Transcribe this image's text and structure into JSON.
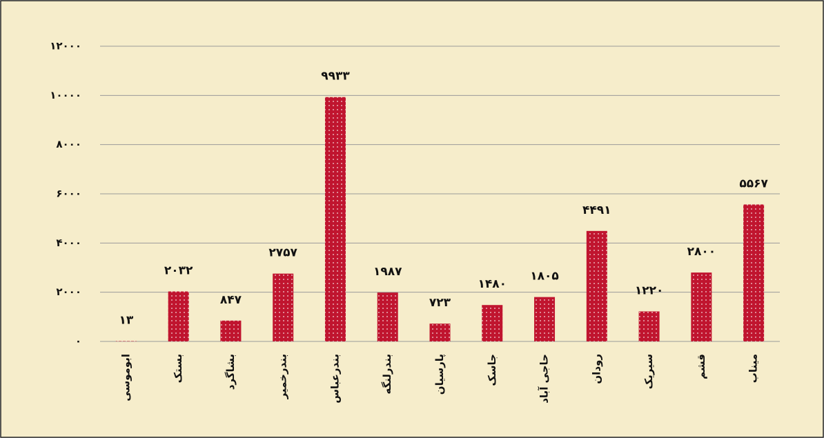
{
  "chart_data": {
    "type": "bar",
    "categories": [
      "ابوموسی",
      "بستک",
      "بشاگرد",
      "بندرخمیر",
      "بندرعباس",
      "بندرلنگه",
      "پارسیان",
      "جاسک",
      "حاجی آباد",
      "رودان",
      "سیریک",
      "قشم",
      "میناب"
    ],
    "values": [
      13,
      2032,
      847,
      2757,
      9933,
      1987,
      723,
      1480,
      1805,
      4491,
      1220,
      2800,
      5567
    ],
    "value_labels": [
      "۱۳",
      "۲۰۳۲",
      "۸۴۷",
      "۲۷۵۷",
      "۹۹۳۳",
      "۱۹۸۷",
      "۷۲۳",
      "۱۴۸۰",
      "۱۸۰۵",
      "۴۴۹۱",
      "۱۲۲۰",
      "۲۸۰۰",
      "۵۵۶۷"
    ],
    "color": "#c0152f",
    "ylim": [
      0,
      12000
    ],
    "yticks": [
      {
        "value": 0,
        "label": "۰"
      },
      {
        "value": 2000,
        "label": "۲۰۰۰"
      },
      {
        "value": 4000,
        "label": "۴۰۰۰"
      },
      {
        "value": 6000,
        "label": "۶۰۰۰"
      },
      {
        "value": 8000,
        "label": "۸۰۰۰"
      },
      {
        "value": 10000,
        "label": "۱۰۰۰۰"
      },
      {
        "value": 12000,
        "label": "۱۲۰۰۰"
      }
    ],
    "grid": true
  }
}
